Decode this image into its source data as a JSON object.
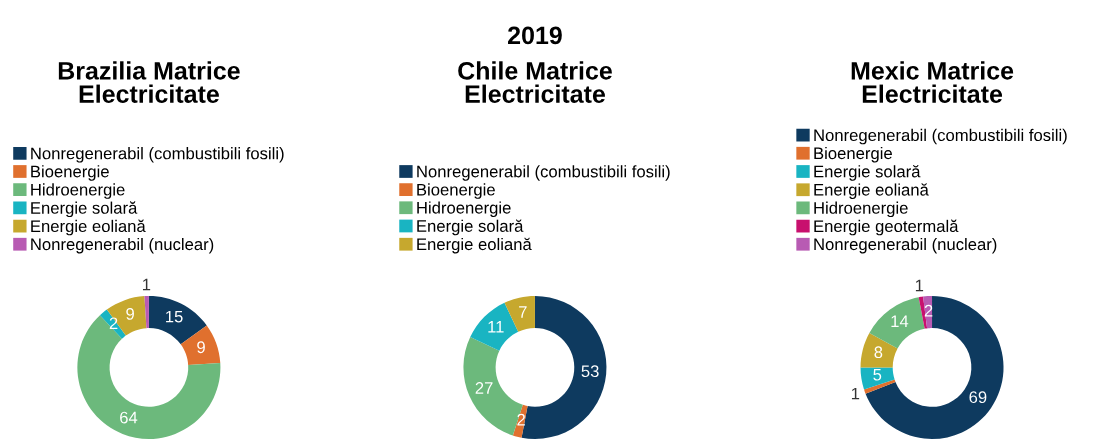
{
  "chart_data": [
    {
      "type": "donut",
      "title": "Brazilia Matrice\nElectricitate",
      "categories": [
        "Nonregenerabil (combustibili fosili)",
        "Bioenergie",
        "Hidroenergie",
        "Energie solară",
        "Energie eoliană",
        "Nonregenerabil (nuclear)"
      ],
      "values": [
        15,
        9,
        64,
        2,
        9,
        1
      ],
      "colors": [
        "#0e3a5f",
        "#e0702e",
        "#6cb97c",
        "#19b4c2",
        "#c6a82e",
        "#b85bb3"
      ],
      "data_labels": true,
      "legend": "top"
    },
    {
      "type": "donut",
      "title": "Chile Matrice\nElectricitate",
      "annotations": [
        "2019"
      ],
      "categories": [
        "Nonregenerabil (combustibili fosili)",
        "Bioenergie",
        "Hidroenergie",
        "Energie solară",
        "Energie eoliană"
      ],
      "values": [
        53,
        2,
        27,
        11,
        7
      ],
      "colors": [
        "#0e3a5f",
        "#e0702e",
        "#6cb97c",
        "#19b4c2",
        "#c6a82e"
      ],
      "data_labels": true,
      "legend": "top"
    },
    {
      "type": "donut",
      "title": "Mexic Matrice\nElectricitate",
      "categories": [
        "Nonregenerabil (combustibili fosili)",
        "Bioenergie",
        "Energie solară",
        "Energie eoliană",
        "Hidroenergie",
        "Energie geotermală",
        "Nonregenerabil (nuclear)"
      ],
      "values": [
        69,
        1,
        5,
        8,
        14,
        1,
        2
      ],
      "colors": [
        "#0e3a5f",
        "#e0702e",
        "#19b4c2",
        "#c6a82e",
        "#6cb97c",
        "#c8106e",
        "#b85bb3"
      ],
      "data_labels": true,
      "legend": "top"
    }
  ]
}
